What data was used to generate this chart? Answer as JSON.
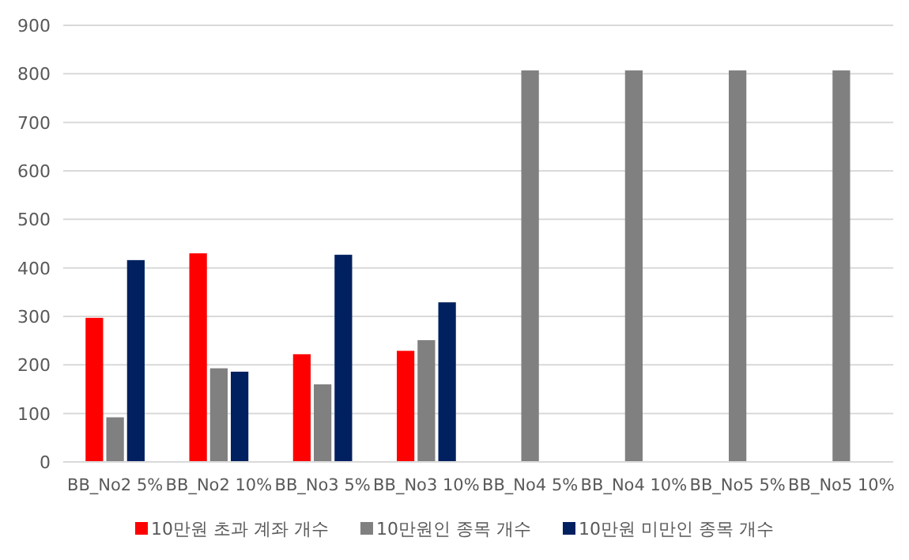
{
  "chart_data": {
    "type": "bar",
    "categories": [
      "BB_No2 5%",
      "BB_No2 10%",
      "BB_No3 5%",
      "BB_No3 10%",
      "BB_No4 5%",
      "BB_No4 10%",
      "BB_No5 5%",
      "BB_No5 10%"
    ],
    "series": [
      {
        "name": "10만원 초과 계좌 개수",
        "color": "#ff0000",
        "values": [
          297,
          430,
          222,
          229,
          null,
          null,
          null,
          null
        ]
      },
      {
        "name": "10만원인 종목 개수",
        "color": "#808080",
        "values": [
          92,
          193,
          160,
          251,
          807,
          807,
          807,
          807
        ]
      },
      {
        "name": "10만원 미만인 종목 개수",
        "color": "#002060",
        "values": [
          416,
          186,
          427,
          329,
          null,
          null,
          null,
          null
        ]
      }
    ],
    "ylim": [
      0,
      900
    ],
    "yticks": [
      0,
      100,
      200,
      300,
      400,
      500,
      600,
      700,
      800,
      900
    ],
    "grid": "y",
    "legend": "bottom"
  }
}
